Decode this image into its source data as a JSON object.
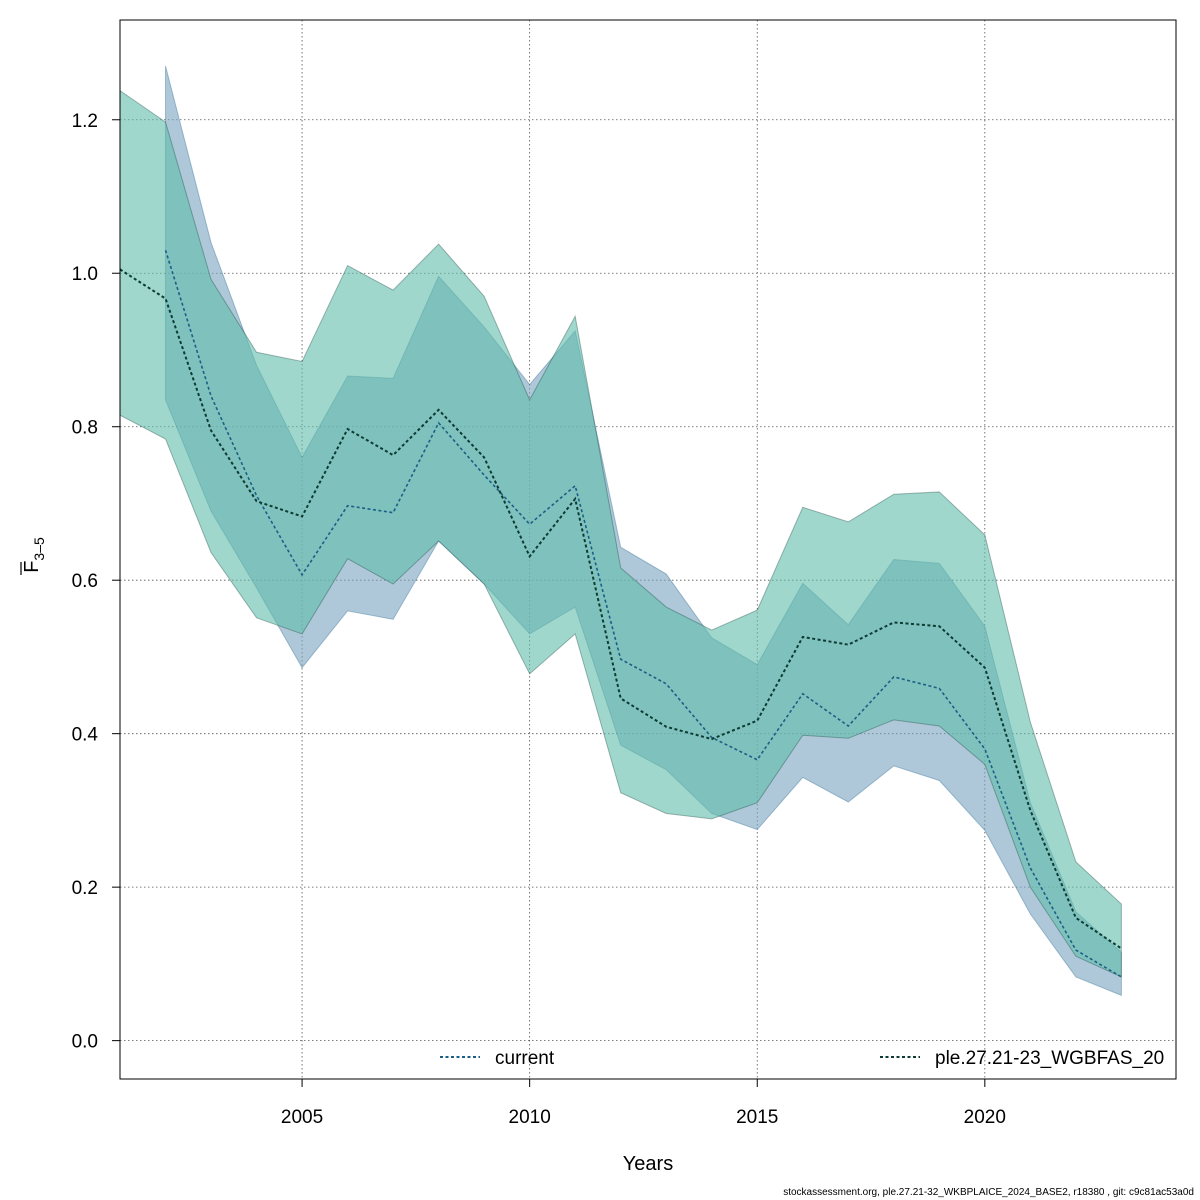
{
  "footer_text": "stockassessment.org, ple.27.21-32_WKBPLAICE_2024_BASE2, r18380 , git: c9c81ac53a0d",
  "chart_data": {
    "type": "line",
    "title": "",
    "xlabel": "Years",
    "ylabel_main": "F",
    "ylabel_sub": "3–5",
    "xlim": [
      2001,
      2024.2
    ],
    "ylim": [
      -0.05,
      1.33
    ],
    "xticks": [
      2005,
      2010,
      2015,
      2020
    ],
    "yticks": [
      0.0,
      0.2,
      0.4,
      0.6,
      0.8,
      1.0,
      1.2
    ],
    "ytick_labels": [
      "0.0",
      "0.2",
      "0.4",
      "0.6",
      "0.8",
      "1.0",
      "1.2"
    ],
    "grid": true,
    "legend_position": "bottom",
    "series": [
      {
        "name": "current",
        "color": "#1b5f86",
        "band_color": "#7aa3bf",
        "x": [
          2002,
          2003,
          2004,
          2005,
          2006,
          2007,
          2008,
          2009,
          2010,
          2011,
          2012,
          2013,
          2014,
          2015,
          2016,
          2017,
          2018,
          2019,
          2020,
          2021,
          2022,
          2023
        ],
        "values": [
          1.03,
          0.84,
          0.71,
          0.607,
          0.697,
          0.688,
          0.805,
          0.737,
          0.673,
          0.723,
          0.497,
          0.465,
          0.395,
          0.366,
          0.452,
          0.41,
          0.474,
          0.459,
          0.38,
          0.225,
          0.118,
          0.083
        ],
        "lower": [
          0.835,
          0.69,
          0.59,
          0.486,
          0.56,
          0.549,
          0.651,
          0.595,
          0.53,
          0.565,
          0.385,
          0.353,
          0.296,
          0.275,
          0.343,
          0.311,
          0.358,
          0.339,
          0.274,
          0.165,
          0.083,
          0.059
        ],
        "upper": [
          1.27,
          1.04,
          0.88,
          0.76,
          0.866,
          0.863,
          0.996,
          0.93,
          0.855,
          0.925,
          0.643,
          0.608,
          0.525,
          0.49,
          0.596,
          0.542,
          0.627,
          0.622,
          0.54,
          0.31,
          0.168,
          0.115
        ]
      },
      {
        "name": "ple.27.21-23_WGBFAS_20",
        "color": "#0d3b33",
        "band_color": "#5fbcaa",
        "x": [
          2001,
          2002,
          2003,
          2004,
          2005,
          2006,
          2007,
          2008,
          2009,
          2010,
          2011,
          2012,
          2013,
          2014,
          2015,
          2016,
          2017,
          2018,
          2019,
          2020,
          2021,
          2022,
          2023
        ],
        "values": [
          1.005,
          0.967,
          0.795,
          0.703,
          0.683,
          0.797,
          0.763,
          0.822,
          0.76,
          0.631,
          0.706,
          0.446,
          0.409,
          0.393,
          0.417,
          0.526,
          0.516,
          0.545,
          0.54,
          0.486,
          0.3,
          0.16,
          0.12
        ],
        "lower": [
          0.815,
          0.784,
          0.636,
          0.551,
          0.53,
          0.628,
          0.595,
          0.651,
          0.595,
          0.478,
          0.53,
          0.323,
          0.296,
          0.289,
          0.31,
          0.398,
          0.394,
          0.418,
          0.41,
          0.36,
          0.2,
          0.11,
          0.083
        ],
        "upper": [
          1.238,
          1.197,
          0.992,
          0.897,
          0.885,
          1.01,
          0.978,
          1.038,
          0.97,
          0.835,
          0.944,
          0.616,
          0.565,
          0.535,
          0.561,
          0.695,
          0.676,
          0.712,
          0.715,
          0.659,
          0.415,
          0.233,
          0.178
        ]
      }
    ]
  }
}
